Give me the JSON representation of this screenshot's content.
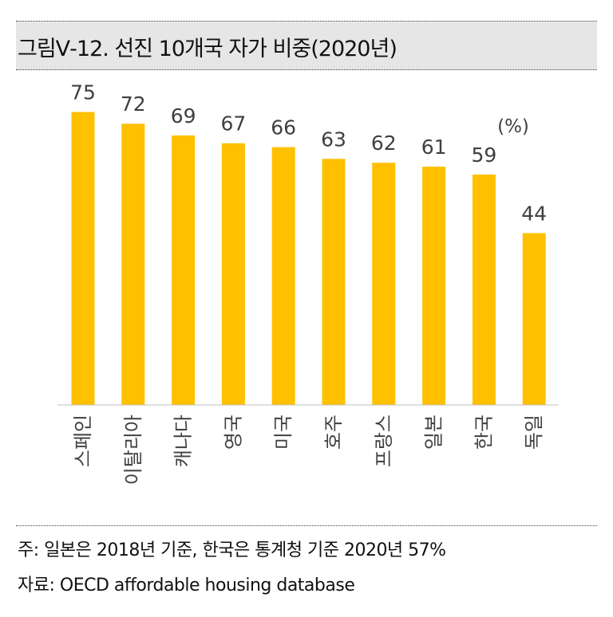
{
  "header": {
    "title": "그림Ⅴ-12. 선진 10개국 자가 비중(2020년)"
  },
  "chart_data": {
    "type": "bar",
    "unit_label": "(%)",
    "categories": [
      "스페인",
      "이탈리아",
      "캐나다",
      "영국",
      "미국",
      "호주",
      "프랑스",
      "일본",
      "한국",
      "독일"
    ],
    "values": [
      75,
      72,
      69,
      67,
      66,
      63,
      62,
      61,
      59,
      44
    ],
    "data_labels": [
      "75",
      "72",
      "69",
      "67",
      "66",
      "63",
      "62",
      "61",
      "59",
      "44"
    ],
    "bar_color": "#FFC000",
    "axis_color": "#BFBFBF",
    "label_color": "#404040",
    "ylim": [
      0,
      100
    ],
    "grid": false,
    "legend": "none"
  },
  "footer": {
    "note": "주: 일본은 2018년 기준, 한국은 통계청 기준 2020년 57%",
    "source": "자료: OECD affordable housing database"
  }
}
